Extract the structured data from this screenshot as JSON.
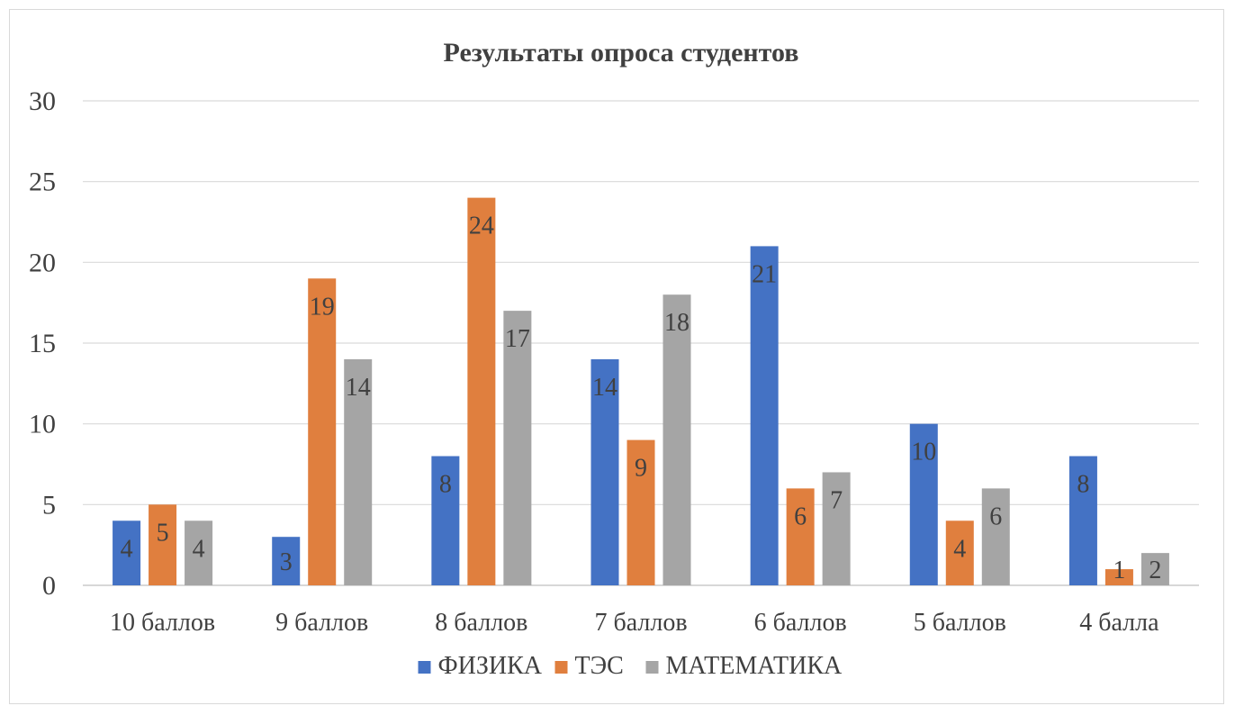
{
  "chart_data": {
    "type": "bar",
    "title": "Результаты опроса студентов",
    "categories": [
      "10 баллов",
      "9 баллов",
      "8 баллов",
      "7 баллов",
      "6 баллов",
      "5 баллов",
      "4 балла"
    ],
    "series": [
      {
        "name": "ФИЗИКА",
        "color": "#4472c4",
        "values": [
          4,
          3,
          8,
          14,
          21,
          10,
          8
        ]
      },
      {
        "name": "ТЭС",
        "color": "#e07f3e",
        "values": [
          5,
          19,
          24,
          9,
          6,
          4,
          1
        ]
      },
      {
        "name": "МАТЕМАТИКА",
        "color": "#a5a5a5",
        "values": [
          4,
          14,
          17,
          18,
          7,
          6,
          2
        ]
      }
    ],
    "ylim": [
      0,
      30
    ],
    "yticks": [
      "0",
      "5",
      "10",
      "15",
      "20",
      "25",
      "30"
    ],
    "grid": true,
    "legend_position": "bottom"
  }
}
